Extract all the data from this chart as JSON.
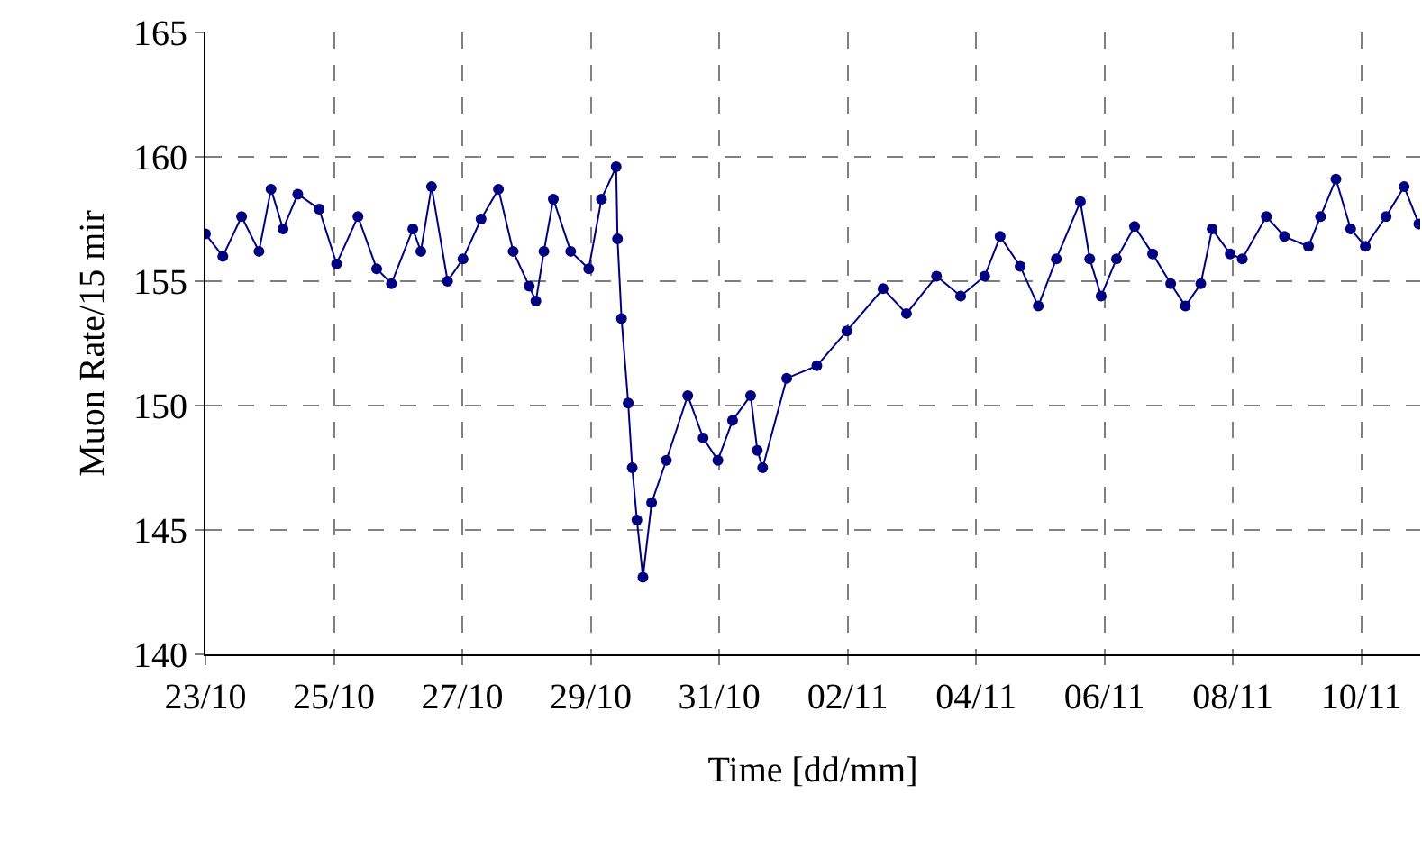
{
  "chart_data": {
    "type": "line",
    "xlabel": "Time [dd/mm]",
    "ylabel": "Muon Rate/15 mir",
    "x": [
      "--10-23T00:00",
      "--10-23T06:30",
      "--10-23T13:30",
      "--10-23T20:00",
      "--10-24T00:30",
      "--10-24T05:00",
      "--10-24T10:30",
      "--10-24T18:30",
      "--10-25T01:00",
      "--10-25T09:00",
      "--10-25T16:00",
      "--10-25T21:30",
      "--10-26T05:30",
      "--10-26T08:30",
      "--10-26T12:30",
      "--10-26T18:30",
      "--10-27T00:15",
      "--10-27T07:00",
      "--10-27T13:30",
      "--10-27T19:00",
      "--10-28T01:00",
      "--10-28T03:30",
      "--10-28T06:30",
      "--10-28T10:00",
      "--10-28T16:30",
      "--10-28T23:15",
      "--10-29T04:00",
      "--10-29T09:30",
      "--10-29T10:00",
      "--10-29T11:30",
      "--10-29T14:00",
      "--10-29T15:30",
      "--10-29T17:15",
      "--10-29T19:30",
      "--10-29T22:45",
      "--10-30T04:15",
      "--10-30T12:15",
      "--10-30T18:00",
      "--10-30T23:30",
      "--10-31T05:00",
      "--10-31T11:45",
      "--10-31T14:15",
      "--10-31T16:15",
      "--11-01T01:15",
      "--11-01T12:30",
      "--11-01T23:45",
      "--11-02T13:15",
      "--11-02T22:00",
      "--11-03T09:15",
      "--11-03T18:15",
      "--11-04T03:15",
      "--11-04T09:00",
      "--11-04T16:30",
      "--11-04T23:15",
      "--11-05T06:00",
      "--11-05T15:00",
      "--11-05T18:30",
      "--11-05T22:45",
      "--11-06T04:30",
      "--11-06T11:15",
      "--11-06T18:00",
      "--11-07T00:45",
      "--11-07T06:15",
      "--11-07T12:00",
      "--11-07T16:15",
      "--11-07T23:00",
      "--11-08T03:30",
      "--11-08T12:30",
      "--11-08T19:15",
      "--11-09T04:15",
      "--11-09T08:45",
      "--11-09T14:30",
      "--11-09T20:00",
      "--11-10T01:30",
      "--11-10T09:15",
      "--11-10T16:00",
      "--11-10T21:30"
    ],
    "series": [
      {
        "color": "#000080",
        "values": [
          156.9,
          156,
          157.6,
          156.2,
          158.7,
          157.1,
          158.5,
          157.9,
          155.7,
          157.6,
          155.5,
          154.9,
          157.1,
          156.2,
          158.8,
          155,
          155.9,
          157.5,
          158.7,
          156.2,
          154.8,
          154.2,
          156.2,
          158.3,
          156.2,
          155.5,
          158.3,
          159.6,
          156.7,
          153.5,
          150.1,
          147.5,
          145.4,
          143.1,
          146.1,
          147.8,
          150.4,
          148.7,
          147.8,
          149.4,
          150.4,
          148.2,
          147.5,
          151.1,
          151.6,
          153,
          154.7,
          153.7,
          155.2,
          154.4,
          155.2,
          156.8,
          155.6,
          154,
          155.9,
          158.2,
          155.9,
          154.4,
          155.9,
          157.2,
          156.1,
          154.9,
          154,
          154.9,
          157.1,
          156.1,
          155.9,
          157.6,
          156.8,
          156.4,
          157.6,
          159.1,
          157.1,
          156.4,
          157.6,
          158.8,
          157.3
        ]
      }
    ],
    "xlim": [
      "--10-23",
      "--11-10T22:00"
    ],
    "xticks": [
      {
        "value": "--10-23",
        "label": "23/10"
      },
      {
        "value": "--10-25",
        "label": "25/10"
      },
      {
        "value": "--10-27",
        "label": "27/10"
      },
      {
        "value": "--10-29",
        "label": "29/10"
      },
      {
        "value": "--10-31",
        "label": "31/10"
      },
      {
        "value": "--11-02",
        "label": "02/11"
      },
      {
        "value": "--11-04",
        "label": "04/11"
      },
      {
        "value": "--11-06",
        "label": "06/11"
      },
      {
        "value": "--11-08",
        "label": "08/11"
      },
      {
        "value": "--11-10",
        "label": "10/11"
      }
    ],
    "ylim": [
      140,
      165
    ],
    "yticks": [
      140,
      145,
      150,
      155,
      160,
      165
    ],
    "grid": true,
    "marker": "circle",
    "line_style": "solid"
  }
}
